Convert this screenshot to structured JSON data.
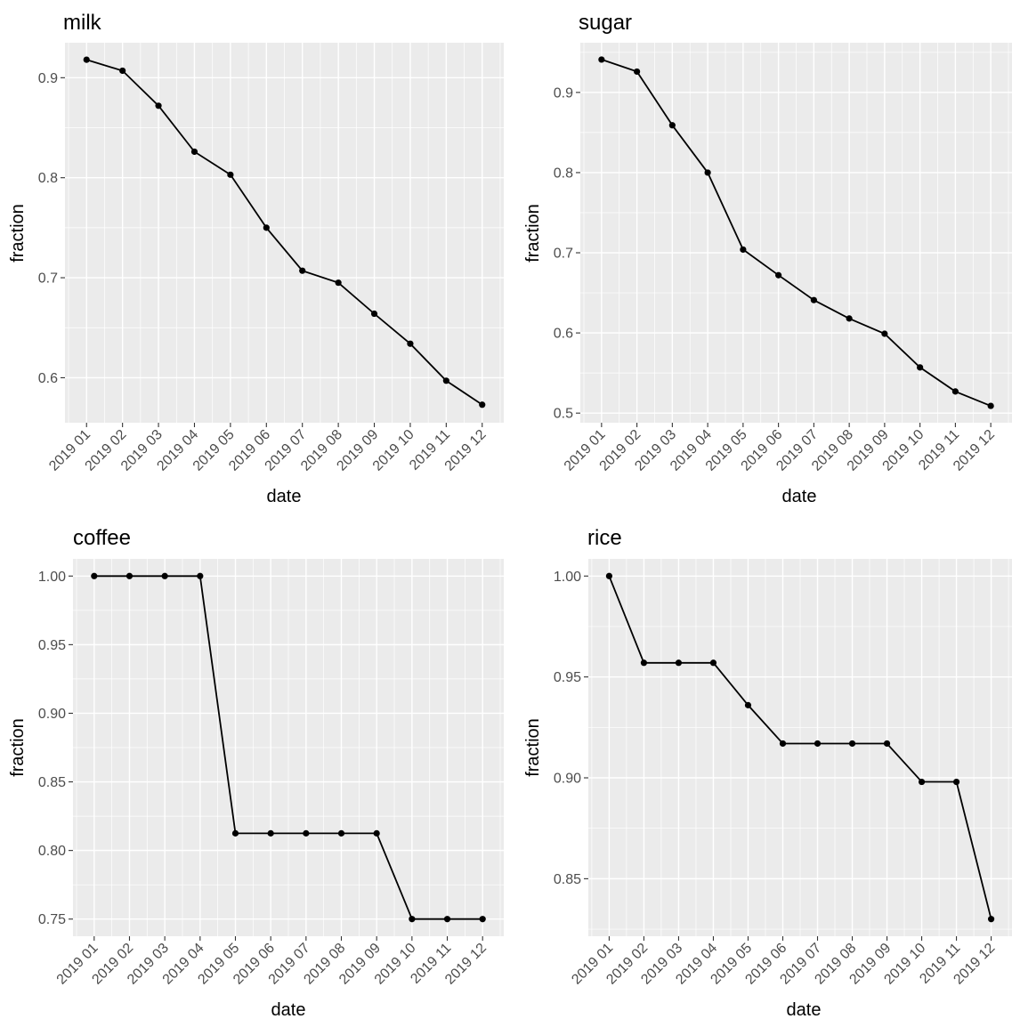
{
  "figure": {
    "background": "#ffffff",
    "panel_background": "#ebebeb",
    "grid_color": "#ffffff",
    "line_color": "#000000",
    "point_color": "#000000"
  },
  "chart_data": [
    {
      "type": "line",
      "title": "milk",
      "xlabel": "date",
      "ylabel": "fraction",
      "categories": [
        "2019 01",
        "2019 02",
        "2019 03",
        "2019 04",
        "2019 05",
        "2019 06",
        "2019 07",
        "2019 08",
        "2019 09",
        "2019 10",
        "2019 11",
        "2019 12"
      ],
      "values": [
        0.918,
        0.907,
        0.872,
        0.826,
        0.803,
        0.75,
        0.707,
        0.695,
        0.664,
        0.634,
        0.597,
        0.573
      ],
      "ylim": [
        0.555,
        0.935
      ],
      "yticks": [
        0.6,
        0.7,
        0.8,
        0.9
      ],
      "ytick_labels": [
        "0.6",
        "0.7",
        "0.8",
        "0.9"
      ],
      "grid": true,
      "markers": true
    },
    {
      "type": "line",
      "title": "sugar",
      "xlabel": "date",
      "ylabel": "fraction",
      "categories": [
        "2019 01",
        "2019 02",
        "2019 03",
        "2019 04",
        "2019 05",
        "2019 06",
        "2019 07",
        "2019 08",
        "2019 09",
        "2019 10",
        "2019 11",
        "2019 12"
      ],
      "values": [
        0.941,
        0.926,
        0.859,
        0.8,
        0.704,
        0.672,
        0.641,
        0.618,
        0.599,
        0.557,
        0.527,
        0.509
      ],
      "ylim": [
        0.488,
        0.962
      ],
      "yticks": [
        0.5,
        0.6,
        0.7,
        0.8,
        0.9
      ],
      "ytick_labels": [
        "0.5",
        "0.6",
        "0.7",
        "0.8",
        "0.9"
      ],
      "grid": true,
      "markers": true
    },
    {
      "type": "line",
      "title": "coffee",
      "xlabel": "date",
      "ylabel": "fraction",
      "categories": [
        "2019 01",
        "2019 02",
        "2019 03",
        "2019 04",
        "2019 05",
        "2019 06",
        "2019 07",
        "2019 08",
        "2019 09",
        "2019 10",
        "2019 11",
        "2019 12"
      ],
      "values": [
        1.0,
        1.0,
        1.0,
        1.0,
        0.8125,
        0.8125,
        0.8125,
        0.8125,
        0.8125,
        0.75,
        0.75,
        0.75
      ],
      "ylim": [
        0.7375,
        1.0125
      ],
      "yticks": [
        0.75,
        0.8,
        0.85,
        0.9,
        0.95,
        1.0
      ],
      "ytick_labels": [
        "0.75",
        "0.80",
        "0.85",
        "0.90",
        "0.95",
        "1.00"
      ],
      "grid": true,
      "markers": true
    },
    {
      "type": "line",
      "title": "rice",
      "xlabel": "date",
      "ylabel": "fraction",
      "categories": [
        "2019 01",
        "2019 02",
        "2019 03",
        "2019 04",
        "2019 05",
        "2019 06",
        "2019 07",
        "2019 08",
        "2019 09",
        "2019 10",
        "2019 11",
        "2019 12"
      ],
      "values": [
        1.0,
        0.957,
        0.957,
        0.957,
        0.936,
        0.917,
        0.917,
        0.917,
        0.917,
        0.898,
        0.898,
        0.83
      ],
      "ylim": [
        0.8215,
        1.0085
      ],
      "yticks": [
        0.85,
        0.9,
        0.95,
        1.0
      ],
      "ytick_labels": [
        "0.85",
        "0.90",
        "0.95",
        "1.00"
      ],
      "grid": true,
      "markers": true
    }
  ]
}
